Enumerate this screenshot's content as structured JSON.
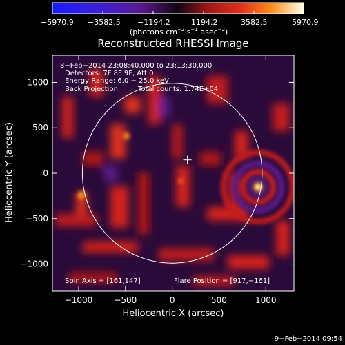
{
  "colorbar": {
    "ticks": [
      "−5970.9",
      "−3582.5",
      "−1194.2",
      "1194.2",
      "3582.5",
      "5970.9"
    ],
    "unit_main": "(photons cm",
    "unit_exp1": "−2",
    "unit_mid": " s",
    "unit_exp2": "−1",
    "unit_tail": " asec",
    "unit_exp3": "−2",
    "unit_close": ")",
    "range": [
      -5970.9,
      5970.9
    ]
  },
  "chart_data": {
    "type": "heatmap",
    "title": "Reconstructed RHESSI Image",
    "xlabel": "Heliocentric X (arcsec)",
    "ylabel": "Heliocentric Y (arcsec)",
    "xlim": [
      -1280,
      1300
    ],
    "ylim": [
      -1300,
      1300
    ],
    "x_ticks": [
      -1000,
      -500,
      0,
      500,
      1000
    ],
    "x_tick_labels": [
      "−1000",
      "−500",
      "0",
      "500",
      "1000"
    ],
    "y_ticks": [
      1000,
      500,
      0,
      -500,
      -1000
    ],
    "y_tick_labels": [
      "1000",
      "500",
      "0",
      "−500",
      "−1000"
    ],
    "solar_disk_radius_arcsec": 960,
    "crosshair_arcsec": [
      161,
      147
    ],
    "bright_source_arcsec": [
      917,
      -161
    ],
    "info_lines": [
      "8−Feb−2014 23:08:40.000 to 23:13:30.000",
      "Detectors: 7F 8F 9F, Att 0",
      "Energy Range: 6.0 − 25.0 keV"
    ],
    "method": "Back Projection",
    "total_counts": "Total counts: 1.74E+04",
    "spin_axis": "Spin Axis = [161,147]",
    "flare_position": "Flare Position = [917,−161]",
    "colors": {
      "background": "#000000",
      "negative": "#5a1a8c",
      "positive": "#d4241e",
      "peak": "#ffffa0"
    }
  },
  "timestamp": "9−Feb−2014 09:54"
}
